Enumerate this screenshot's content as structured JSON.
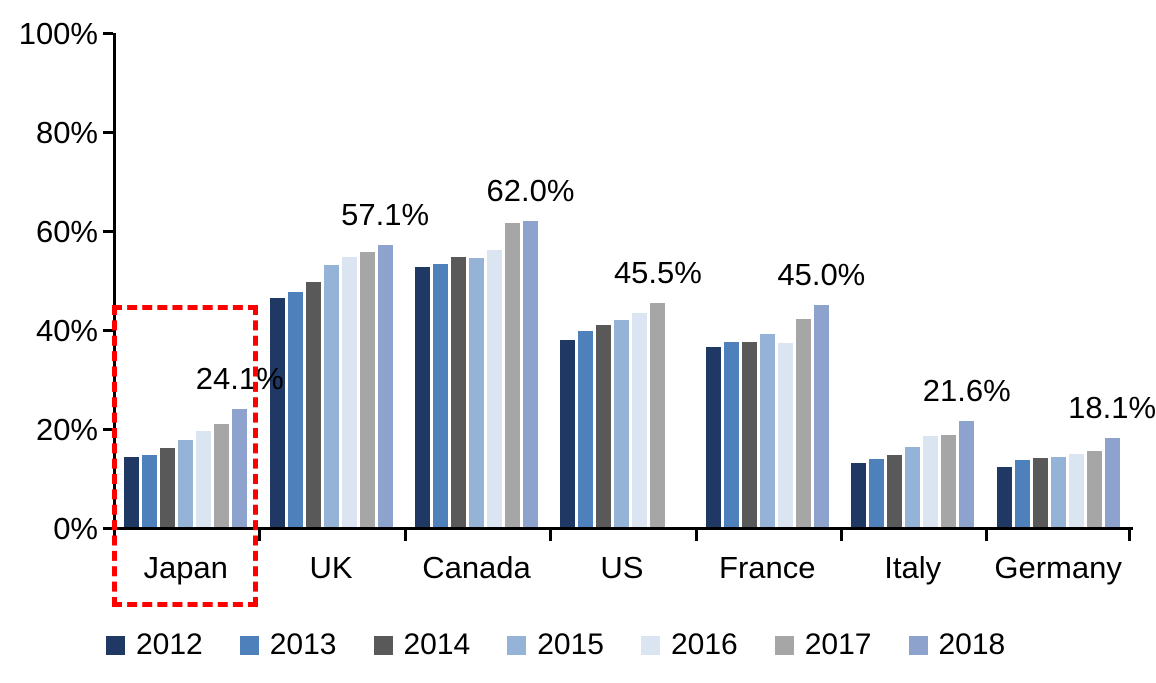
{
  "chart_data": {
    "type": "bar",
    "title": "",
    "xlabel": "",
    "ylabel": "",
    "grid": false,
    "legend_position": "bottom",
    "categories": [
      "Japan",
      "UK",
      "Canada",
      "US",
      "France",
      "Italy",
      "Germany"
    ],
    "series": [
      {
        "name": "2012",
        "color": "#1F3864",
        "values": [
          14.4,
          46.4,
          52.8,
          38.0,
          36.5,
          13.1,
          12.3
        ]
      },
      {
        "name": "2013",
        "color": "#4E80BC",
        "values": [
          14.7,
          47.7,
          53.3,
          39.8,
          37.5,
          13.9,
          13.7
        ]
      },
      {
        "name": "2014",
        "color": "#595959",
        "values": [
          16.2,
          49.7,
          54.8,
          41.0,
          37.5,
          14.8,
          14.1
        ]
      },
      {
        "name": "2015",
        "color": "#95B3D7",
        "values": [
          17.7,
          53.1,
          54.6,
          42.0,
          39.1,
          16.4,
          14.3
        ]
      },
      {
        "name": "2016",
        "color": "#DBE5F1",
        "values": [
          19.6,
          54.7,
          56.2,
          43.4,
          37.3,
          18.5,
          14.9
        ]
      },
      {
        "name": "2017",
        "color": "#A6A6A6",
        "values": [
          21.0,
          55.8,
          61.6,
          45.5,
          42.2,
          18.8,
          15.6
        ]
      },
      {
        "name": "2018",
        "color": "#8EA2CE",
        "values": [
          24.1,
          57.1,
          62.0,
          null,
          45.0,
          21.6,
          18.1
        ]
      }
    ],
    "data_labels": [
      "24.1%",
      "57.1%",
      "62.0%",
      "45.5%",
      "45.0%",
      "21.6%",
      "18.1%"
    ],
    "y_axis": {
      "min": 0,
      "max": 100,
      "tick_labels": [
        "100%",
        "80%",
        "60%",
        "40%",
        "20%",
        "0%"
      ],
      "tick_values": [
        100,
        80,
        60,
        40,
        20,
        0
      ]
    },
    "legend": [
      "2012",
      "2013",
      "2014",
      "2015",
      "2016",
      "2017",
      "2018"
    ],
    "annotation": {
      "type": "dashed-box",
      "color": "#FF0000",
      "target_category": "Japan"
    }
  }
}
